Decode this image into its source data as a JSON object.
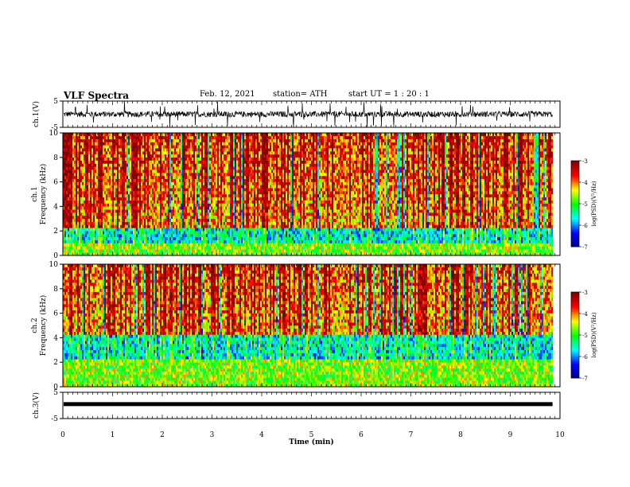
{
  "header": {
    "title": "VLF Spectra",
    "date": "Feb. 12, 2021",
    "station": "station= ATH",
    "start": "start  UT  =    1  : 20 : 1"
  },
  "chart_data": [
    {
      "type": "line",
      "panel": "ch1-waveform",
      "ylabel": "ch.1(V)",
      "ylim": [
        -5,
        5
      ],
      "yticks": [
        5,
        -5
      ],
      "xlim": [
        0,
        10
      ],
      "data_extent_min": [
        0,
        9.85
      ],
      "baseline_v": 0.0,
      "series_color": "#000000"
    },
    {
      "type": "heatmap",
      "panel": "ch1-spectrogram",
      "ylabel": "ch.1\nFrequency (kHz)",
      "ylim": [
        0,
        10
      ],
      "yticks": [
        0,
        2,
        4,
        6,
        8,
        10
      ],
      "xlim": [
        0,
        10
      ],
      "data_extent_min": [
        0,
        9.85
      ],
      "quiet_band_khz": [
        0.9,
        2.3
      ],
      "colorbar": {
        "label": "log(PSD)(V²/Hz)",
        "range": [
          -7,
          -3
        ],
        "ticks": [
          -3,
          -4,
          -5,
          -6,
          -7
        ],
        "colormap": [
          "#000080",
          "#0000ff",
          "#00ffff",
          "#00ff00",
          "#ffff00",
          "#ff0000",
          "#800000"
        ]
      }
    },
    {
      "type": "heatmap",
      "panel": "ch2-spectrogram",
      "ylabel": "ch.2\nFrequency (kHz)",
      "ylim": [
        0,
        10
      ],
      "yticks": [
        0,
        2,
        4,
        6,
        8,
        10
      ],
      "xlim": [
        0,
        10
      ],
      "data_extent_min": [
        0,
        9.85
      ],
      "quiet_band_khz": [
        2.2,
        4.2
      ],
      "colorbar": {
        "label": "log(PSD)(V²/Hz)",
        "range": [
          -7,
          -3
        ],
        "ticks": [
          -3,
          -4,
          -5,
          -6,
          -7
        ],
        "colormap": [
          "#000080",
          "#0000ff",
          "#00ffff",
          "#00ff00",
          "#ffff00",
          "#ff0000",
          "#800000"
        ]
      }
    },
    {
      "type": "line",
      "panel": "ch3-waveform",
      "ylabel": "ch.3(V)",
      "ylim": [
        -5,
        5
      ],
      "yticks": [
        5,
        -5
      ],
      "xlim": [
        0,
        10
      ],
      "data_extent_min": [
        0,
        9.85
      ],
      "baseline_v": 0.5,
      "series_color": "#000000"
    }
  ],
  "xaxis": {
    "label": "Time  (min)",
    "ticks": [
      0,
      1,
      2,
      3,
      4,
      5,
      6,
      7,
      8,
      9,
      10
    ]
  }
}
